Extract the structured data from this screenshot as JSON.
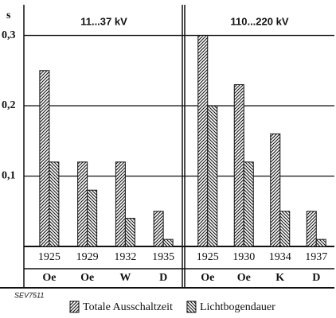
{
  "figure_label": "SEV7511",
  "chart_data": [
    {
      "type": "bar",
      "title": "11...37 kV",
      "y_label": "s",
      "ylim": [
        0,
        0.33
      ],
      "yticks": [
        {
          "value": 0.1,
          "label": "0,1"
        },
        {
          "value": 0.2,
          "label": "0,2"
        },
        {
          "value": 0.3,
          "label": "0,3"
        }
      ],
      "grid": true,
      "categories": [
        "1925",
        "1929",
        "1932",
        "1935"
      ],
      "group_labels": [
        "Oe",
        "Oe",
        "W",
        "D"
      ],
      "series": [
        {
          "name": "Totale Ausschaltzeit",
          "color": "#111111",
          "values": [
            0.25,
            0.12,
            0.12,
            0.05
          ]
        },
        {
          "name": "Lichtbogendauer",
          "color": "#111111",
          "values": [
            0.12,
            0.08,
            0.04,
            0.01
          ]
        }
      ]
    },
    {
      "type": "bar",
      "title": "110...220 kV",
      "ylim": [
        0,
        0.33
      ],
      "categories": [
        "1925",
        "1930",
        "1934",
        "1937"
      ],
      "group_labels": [
        "Oe",
        "Oe",
        "K",
        "D"
      ],
      "series": [
        {
          "values": [
            0.3,
            0.23,
            0.16,
            0.05
          ]
        },
        {
          "values": [
            0.2,
            0.12,
            0.05,
            0.01
          ]
        }
      ]
    }
  ]
}
